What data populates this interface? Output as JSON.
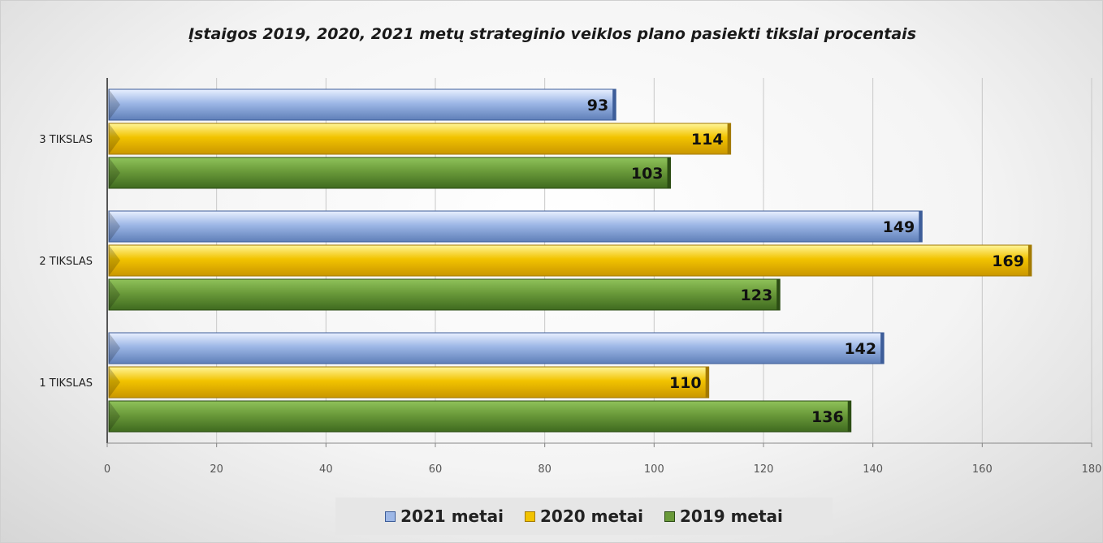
{
  "chart_data": {
    "type": "bar",
    "orientation": "horizontal",
    "title": "Įstaigos 2019, 2020, 2021 metų strateginio veiklos plano pasiekti tikslai procentais",
    "categories": [
      "1 TIKSLAS",
      "2 TIKSLAS",
      "3 TIKSLAS"
    ],
    "series": [
      {
        "name": "2021 metai",
        "color": "#9db7e6",
        "values": [
          142,
          149,
          93
        ]
      },
      {
        "name": "2020 metai",
        "color": "#f2c300",
        "values": [
          110,
          169,
          114
        ]
      },
      {
        "name": "2019 metai",
        "color": "#6a9a3a",
        "values": [
          136,
          123,
          103
        ]
      }
    ],
    "xlim": [
      0,
      180
    ],
    "x_ticks": [
      "0",
      "20",
      "40",
      "60",
      "80",
      "100",
      "120",
      "140",
      "160",
      "180"
    ],
    "grid": true,
    "legend_position": "bottom",
    "data_labels": true
  }
}
